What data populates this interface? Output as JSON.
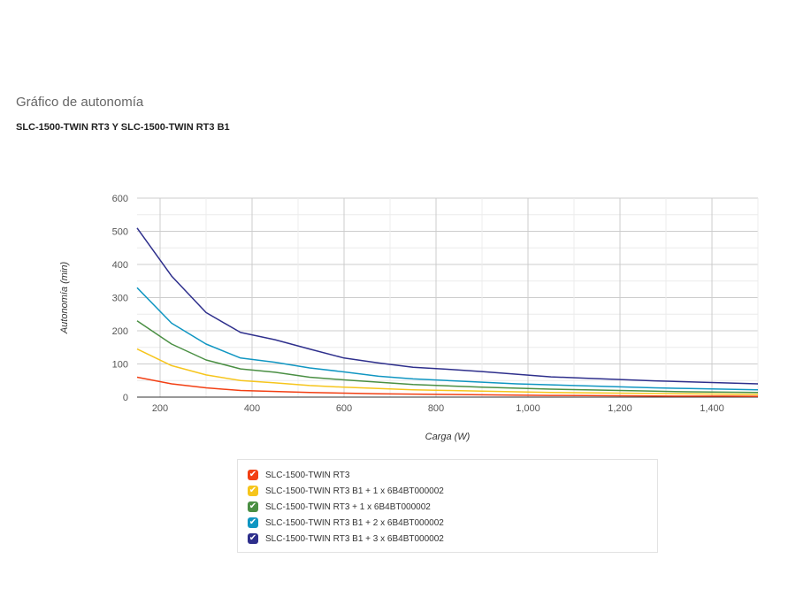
{
  "page": {
    "heading": "Gráfico de autonomía",
    "subheading": "SLC-1500-TWIN RT3 Y SLC-1500-TWIN RT3 B1"
  },
  "legend": {
    "check_glyph": "✔"
  },
  "chart_data": {
    "type": "line",
    "xlabel": "Carga (W)",
    "ylabel": "Autonomía (min)",
    "xlim": [
      150,
      1500
    ],
    "ylim": [
      0,
      600
    ],
    "x_ticks": [
      200,
      400,
      600,
      800,
      1000,
      1200,
      1400
    ],
    "x_tick_labels": [
      "200",
      "400",
      "600",
      "800",
      "1,000",
      "1,200",
      "1,400"
    ],
    "y_ticks": [
      0,
      100,
      200,
      300,
      400,
      500,
      600
    ],
    "y_tick_labels": [
      "0",
      "100",
      "200",
      "300",
      "400",
      "500",
      "600"
    ],
    "grid": true,
    "legend_position": "bottom",
    "x": [
      150,
      225,
      300,
      375,
      450,
      525,
      600,
      675,
      750,
      825,
      900,
      975,
      1050,
      1125,
      1200,
      1275,
      1350,
      1425,
      1500
    ],
    "series": [
      {
        "name": "SLC-1500-TWIN RT3",
        "color": "#f23f13",
        "values": [
          60,
          40,
          28,
          20,
          17,
          14,
          12,
          10,
          9,
          8,
          7,
          6,
          5,
          4.5,
          4,
          3.5,
          3,
          3,
          2.5
        ]
      },
      {
        "name": "SLC-1500-TWIN RT3 B1 + 1 x 6B4BT000002",
        "color": "#f6c51c",
        "values": [
          145,
          95,
          67,
          50,
          43,
          35,
          30,
          26,
          22,
          20,
          18,
          16,
          14,
          13,
          12,
          11,
          10,
          9,
          8
        ]
      },
      {
        "name": "SLC-1500-TWIN RT3 + 1 x 6B4BT000002",
        "color": "#4a8f43",
        "values": [
          230,
          160,
          112,
          85,
          75,
          60,
          52,
          45,
          38,
          34,
          30,
          27,
          24,
          22,
          20,
          18,
          16,
          15,
          14
        ]
      },
      {
        "name": "SLC-1500-TWIN RT3 B1 + 2 x 6B4BT000002",
        "color": "#1096c2",
        "values": [
          330,
          223,
          160,
          118,
          105,
          88,
          76,
          63,
          55,
          50,
          45,
          40,
          37,
          34,
          31,
          28,
          26,
          24,
          22
        ]
      },
      {
        "name": "SLC-1500-TWIN RT3 B1 + 3 x 6B4BT000002",
        "color": "#2e2f8c",
        "values": [
          510,
          365,
          255,
          195,
          173,
          145,
          118,
          103,
          90,
          84,
          77,
          69,
          61,
          57,
          53,
          49,
          46,
          43,
          40
        ]
      }
    ]
  }
}
